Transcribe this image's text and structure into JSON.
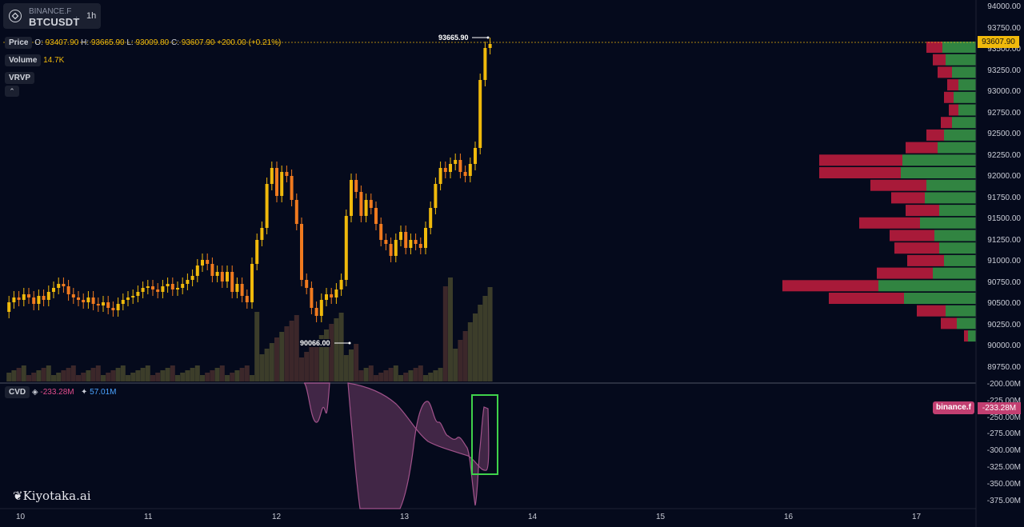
{
  "header": {
    "exchange": "BINANCE.F",
    "symbol": "BTCUSDT",
    "separator": "·",
    "timeframe": "1h",
    "logo_icon": "binance-diamond-icon"
  },
  "price_legend": {
    "label": "Price",
    "o_label": "O:",
    "o": "93407.90",
    "h_label": "H:",
    "h": "93665.90",
    "l_label": "L:",
    "l": "93009.80",
    "c_label": "C:",
    "c": "93607.90",
    "change": "+200.00",
    "change_pct": "(+0.21%)"
  },
  "volume_legend": {
    "label": "Volume",
    "value": "14.7K"
  },
  "vrvp_label": "VRVP",
  "collapse_icon": "chevron-up-icon",
  "cvd_legend": {
    "label": "CVD",
    "value1": "-233.28M",
    "value2": "57.01M",
    "icon1": "diamond-icon",
    "icon2": "drop-icon"
  },
  "price_axis": [
    "94000.00",
    "93750.00",
    "93500.00",
    "93250.00",
    "93000.00",
    "92750.00",
    "92500.00",
    "92250.00",
    "92000.00",
    "91750.00",
    "91500.00",
    "91250.00",
    "91000.00",
    "90750.00",
    "90500.00",
    "90250.00",
    "90000.00",
    "89750.00"
  ],
  "cvd_axis": [
    "-200.00M",
    "-225.00M",
    "-250.00M",
    "-275.00M",
    "-300.00M",
    "-325.00M",
    "-350.00M",
    "-375.00M"
  ],
  "time_axis": [
    "10",
    "11",
    "12",
    "13",
    "14",
    "15",
    "16",
    "17"
  ],
  "last_price": "93607.90",
  "cvd_last": "-233.28M",
  "cvd_source": "binance.f",
  "high_callout": "93665.90",
  "low_callout": "90066.00",
  "brand": "Kiyotaka.ai",
  "colors": {
    "bg": "#050a1c",
    "up": "#f0b90b",
    "down": "#f07a1f",
    "vp_buy": "#3a9a48",
    "vp_sell": "#c51d3e",
    "cvd": "#8c4a7a",
    "highlight": "#3fd24b"
  }
}
